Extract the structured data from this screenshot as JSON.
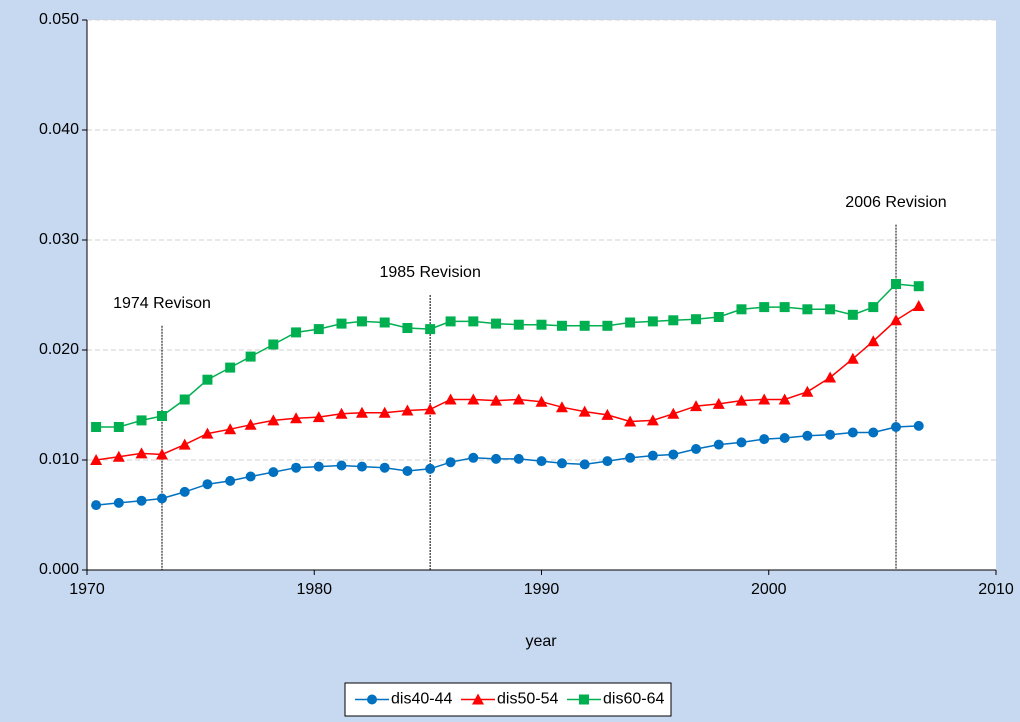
{
  "chart_data": {
    "type": "line",
    "x_label": "year",
    "x": [
      1970.4,
      1971.4,
      1972.4,
      1973.3,
      1974.3,
      1975.3,
      1976.3,
      1977.2,
      1978.2,
      1979.2,
      1980.2,
      1981.2,
      1982.1,
      1983.1,
      1984.1,
      1985.1,
      1986.0,
      1987.0,
      1988.0,
      1989.0,
      1990.0,
      1990.9,
      1991.9,
      1992.9,
      1993.9,
      1994.9,
      1995.8,
      1996.8,
      1997.8,
      1998.8,
      1999.8,
      2000.7,
      2001.7,
      2002.7,
      2003.7,
      2004.6,
      2005.6,
      2006.6
    ],
    "series": [
      {
        "name": "dis40-44",
        "color": "#0070c0",
        "marker": "circle",
        "values": [
          0.0059,
          0.0061,
          0.0063,
          0.0065,
          0.0071,
          0.0078,
          0.0081,
          0.0085,
          0.0089,
          0.0093,
          0.0094,
          0.0095,
          0.0094,
          0.0093,
          0.009,
          0.0092,
          0.0098,
          0.0102,
          0.0101,
          0.0101,
          0.0099,
          0.0097,
          0.0096,
          0.0099,
          0.0102,
          0.0104,
          0.0105,
          0.011,
          0.0114,
          0.0116,
          0.0119,
          0.012,
          0.0122,
          0.0123,
          0.0125,
          0.0125,
          0.013,
          0.0131
        ]
      },
      {
        "name": "dis50-54",
        "color": "#ff0000",
        "marker": "triangle",
        "values": [
          0.01,
          0.0103,
          0.0106,
          0.0105,
          0.0114,
          0.0124,
          0.0128,
          0.0132,
          0.0136,
          0.0138,
          0.0139,
          0.0142,
          0.0143,
          0.0143,
          0.0145,
          0.0146,
          0.0155,
          0.0155,
          0.0154,
          0.0155,
          0.0153,
          0.0148,
          0.0144,
          0.0141,
          0.0135,
          0.0136,
          0.0142,
          0.0149,
          0.0151,
          0.0154,
          0.0155,
          0.0155,
          0.0162,
          0.0175,
          0.0192,
          0.0208,
          0.0227,
          0.024
        ]
      },
      {
        "name": "dis60-64",
        "color": "#00b050",
        "marker": "square",
        "values": [
          0.013,
          0.013,
          0.0136,
          0.014,
          0.0155,
          0.0173,
          0.0184,
          0.0194,
          0.0205,
          0.0216,
          0.0219,
          0.0224,
          0.0226,
          0.0225,
          0.022,
          0.0219,
          0.0226,
          0.0226,
          0.0224,
          0.0223,
          0.0223,
          0.0222,
          0.0222,
          0.0222,
          0.0225,
          0.0226,
          0.0227,
          0.0228,
          0.023,
          0.0237,
          0.0239,
          0.0239,
          0.0237,
          0.0237,
          0.0232,
          0.0239,
          0.026,
          0.0258
        ]
      }
    ],
    "annotations": [
      {
        "text": "1974 Revison",
        "x": 1973.3,
        "y": 0.0222
      },
      {
        "text": "1985 Revision",
        "x": 1985.1,
        "y": 0.025
      },
      {
        "text": "2006 Revision",
        "x": 2005.6,
        "y": 0.0314
      }
    ],
    "xlim": [
      1970,
      2010
    ],
    "xticks": [
      1970,
      1980,
      1990,
      2000,
      2010
    ],
    "ylim": [
      0,
      0.05
    ],
    "yticks": [
      {
        "value": 0,
        "label": "0.000"
      },
      {
        "value": 0.01,
        "label": "0.010"
      },
      {
        "value": 0.02,
        "label": "0.020"
      },
      {
        "value": 0.03,
        "label": "0.030"
      },
      {
        "value": 0.04,
        "label": "0.040"
      },
      {
        "value": 0.05,
        "label": "0.050"
      }
    ],
    "grid": true,
    "legend": "bottom"
  }
}
